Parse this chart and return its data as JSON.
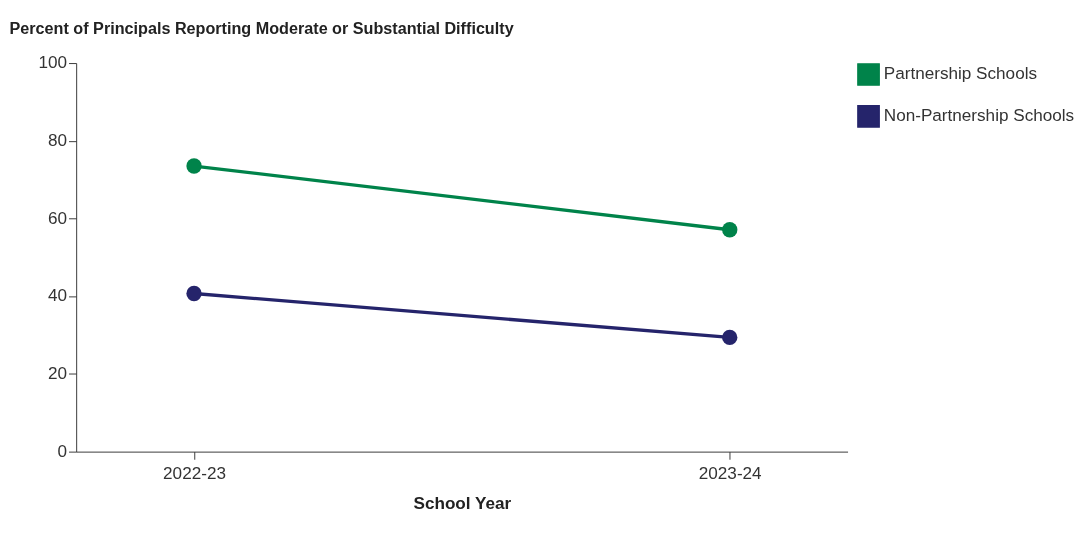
{
  "chart_data": {
    "type": "line",
    "title": "Percent of Principals Reporting Moderate or Substantial Difficulty",
    "xlabel": "School Year",
    "categories": [
      "2022-23",
      "2023-24"
    ],
    "series": [
      {
        "name": "Partnership Schools",
        "color": "#00834a",
        "values": [
          73.5,
          57.1
        ]
      },
      {
        "name": "Non-Partnership Schools",
        "color": "#25246b",
        "values": [
          40.7,
          29.4
        ]
      }
    ],
    "ylim": [
      0,
      100
    ],
    "yticks": [
      0,
      20,
      40,
      60,
      80,
      100
    ],
    "grid": false,
    "legend": "top right",
    "marker": "circle",
    "line_style": "solid"
  }
}
